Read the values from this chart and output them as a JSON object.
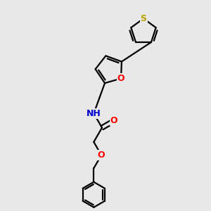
{
  "bg_color": "#e8e8e8",
  "bond_color": "#000000",
  "bond_width": 1.6,
  "atom_colors": {
    "S": "#b8a000",
    "O": "#ff0000",
    "N": "#0000cc",
    "C": "#000000"
  },
  "font_size_atom": 8.5
}
